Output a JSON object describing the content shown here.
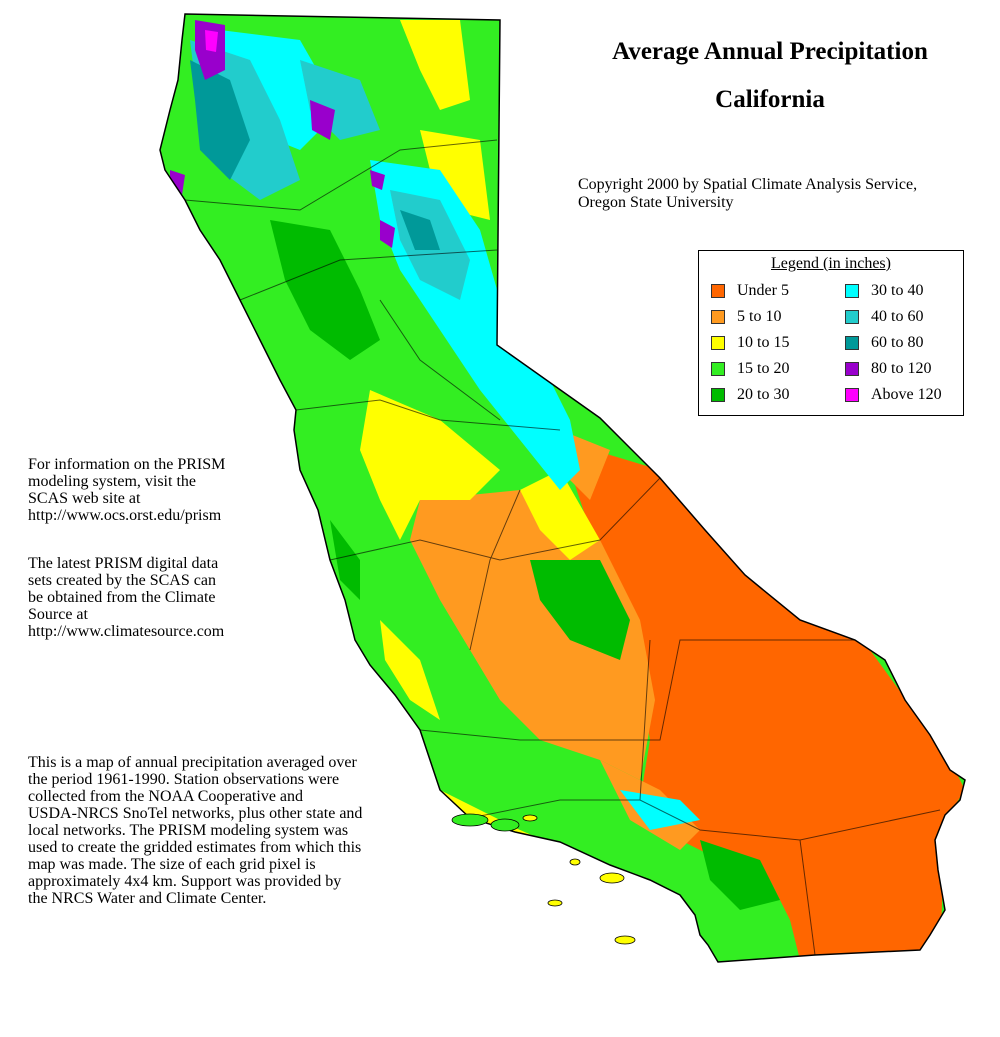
{
  "title": {
    "line1": "Average Annual Precipitation",
    "line2": "California"
  },
  "copyright": "Copyright 2000 by Spatial Climate Analysis Service,\nOregon State University",
  "legend": {
    "title": "Legend (in inches)",
    "items": [
      {
        "label": "Under 5",
        "color": "#ff6600"
      },
      {
        "label": "5 to 10",
        "color": "#ff9a20"
      },
      {
        "label": "10 to 15",
        "color": "#ffff00"
      },
      {
        "label": "15 to 20",
        "color": "#33ee22"
      },
      {
        "label": "20 to 30",
        "color": "#00bb00"
      },
      {
        "label": "30 to 40",
        "color": "#00ffff"
      },
      {
        "label": "40 to 60",
        "color": "#22cccc"
      },
      {
        "label": "60 to 80",
        "color": "#009999"
      },
      {
        "label": "80 to 120",
        "color": "#9900cc"
      },
      {
        "label": "Above 120",
        "color": "#ff00ff"
      }
    ]
  },
  "info": {
    "prism": "For information on the PRISM\nmodeling system, visit the\nSCAS web site at\n http://www.ocs.orst.edu/prism",
    "data": "The latest PRISM digital data\nsets created by the SCAS can\nbe obtained from the Climate\nSource at\nhttp://www.climatesource.com",
    "description": "This is a map of annual precipitation averaged over\nthe period 1961-1990. Station observations were\ncollected from the NOAA Cooperative and\nUSDA-NRCS SnoTel networks, plus other state and\nlocal networks.  The PRISM modeling system was\nused to create the gridded estimates from which this\nmap was made.  The size of each grid pixel is\napproximately 4x4 km.  Support was provided by\nthe NRCS Water and Climate Center."
  }
}
